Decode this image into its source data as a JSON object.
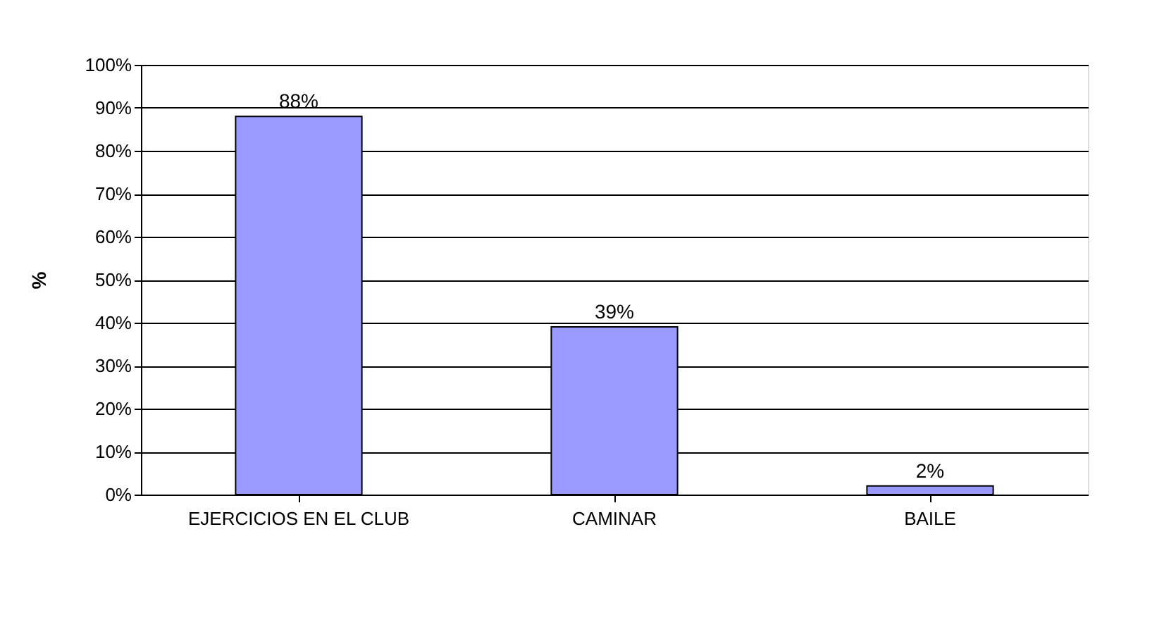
{
  "chart_data": {
    "type": "bar",
    "ylabel": "%",
    "categories": [
      "EJERCICIOS EN EL CLUB",
      "CAMINAR",
      "BAILE"
    ],
    "values": [
      88,
      39,
      2
    ],
    "value_labels": [
      "88%",
      "39%",
      "2%"
    ],
    "color": "#9999ff",
    "ylim": [
      0,
      100
    ],
    "yticks": [
      {
        "value": 0,
        "label": "0%"
      },
      {
        "value": 10,
        "label": "10%"
      },
      {
        "value": 20,
        "label": "20%"
      },
      {
        "value": 30,
        "label": "30%"
      },
      {
        "value": 40,
        "label": "40%"
      },
      {
        "value": 50,
        "label": "50%"
      },
      {
        "value": 60,
        "label": "60%"
      },
      {
        "value": 70,
        "label": "70%"
      },
      {
        "value": 80,
        "label": "80%"
      },
      {
        "value": 90,
        "label": "90%"
      },
      {
        "value": 100,
        "label": "100%"
      }
    ],
    "grid": "y"
  }
}
